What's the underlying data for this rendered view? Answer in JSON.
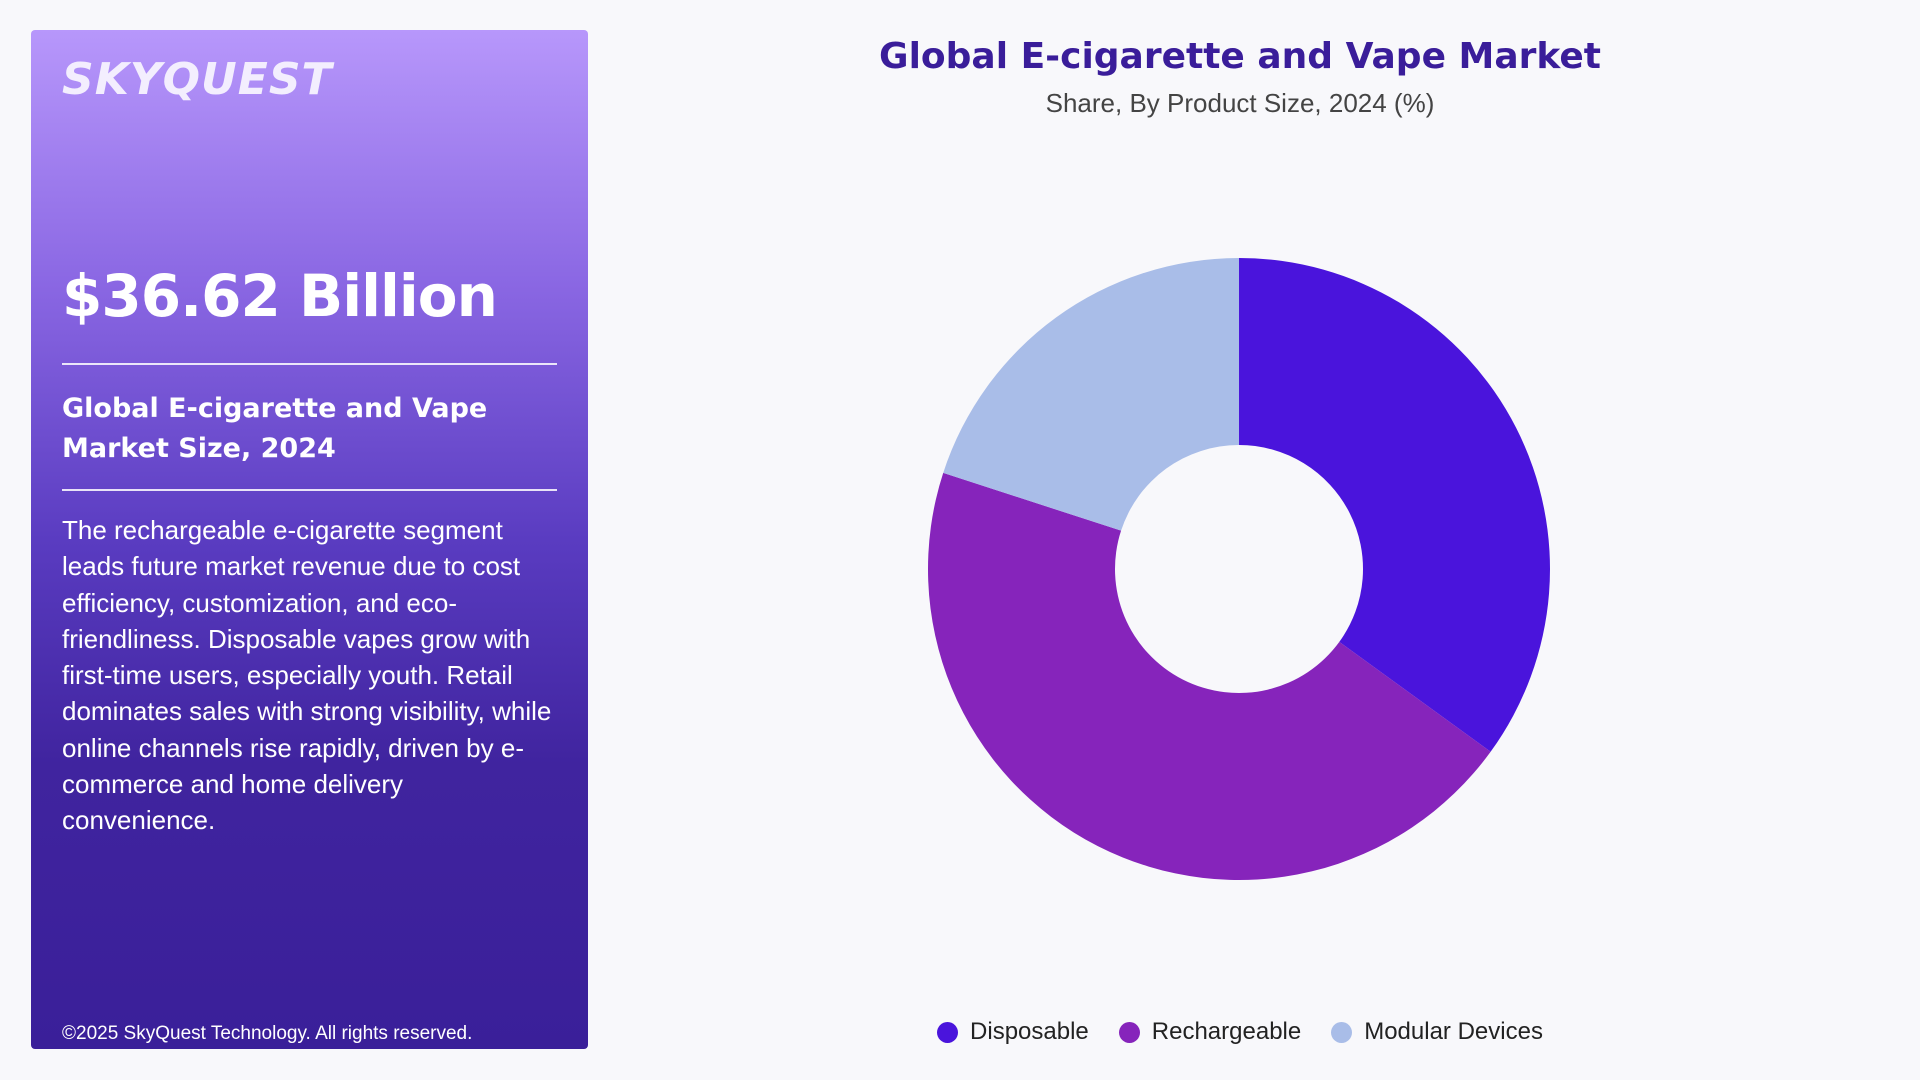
{
  "panel": {
    "logo": "SKYQUEST",
    "market_value": "$36.62 Billion",
    "market_label": "Global E-cigarette and Vape Market Size, 2024",
    "description": "The rechargeable e-cigarette segment leads future market revenue due to cost efficiency, customization, and eco-friendliness. Disposable vapes grow with first-time users, especially youth. Retail dominates sales with strong visibility, while online channels rise rapidly, driven by e-commerce and home delivery convenience.",
    "copyright": "©2025 SkyQuest Technology. All rights reserved."
  },
  "chart_data": {
    "type": "pie",
    "variant": "donut",
    "title": "Global E-cigarette and Vape Market",
    "subtitle": "Share, By Product Size, 2024 (%)",
    "categories": [
      "Disposable",
      "Rechargeable",
      "Modular Devices"
    ],
    "values": [
      35,
      45,
      20
    ],
    "colors": [
      "#4a14dc",
      "#8624bb",
      "#a9bde8"
    ],
    "legend_position": "bottom"
  }
}
